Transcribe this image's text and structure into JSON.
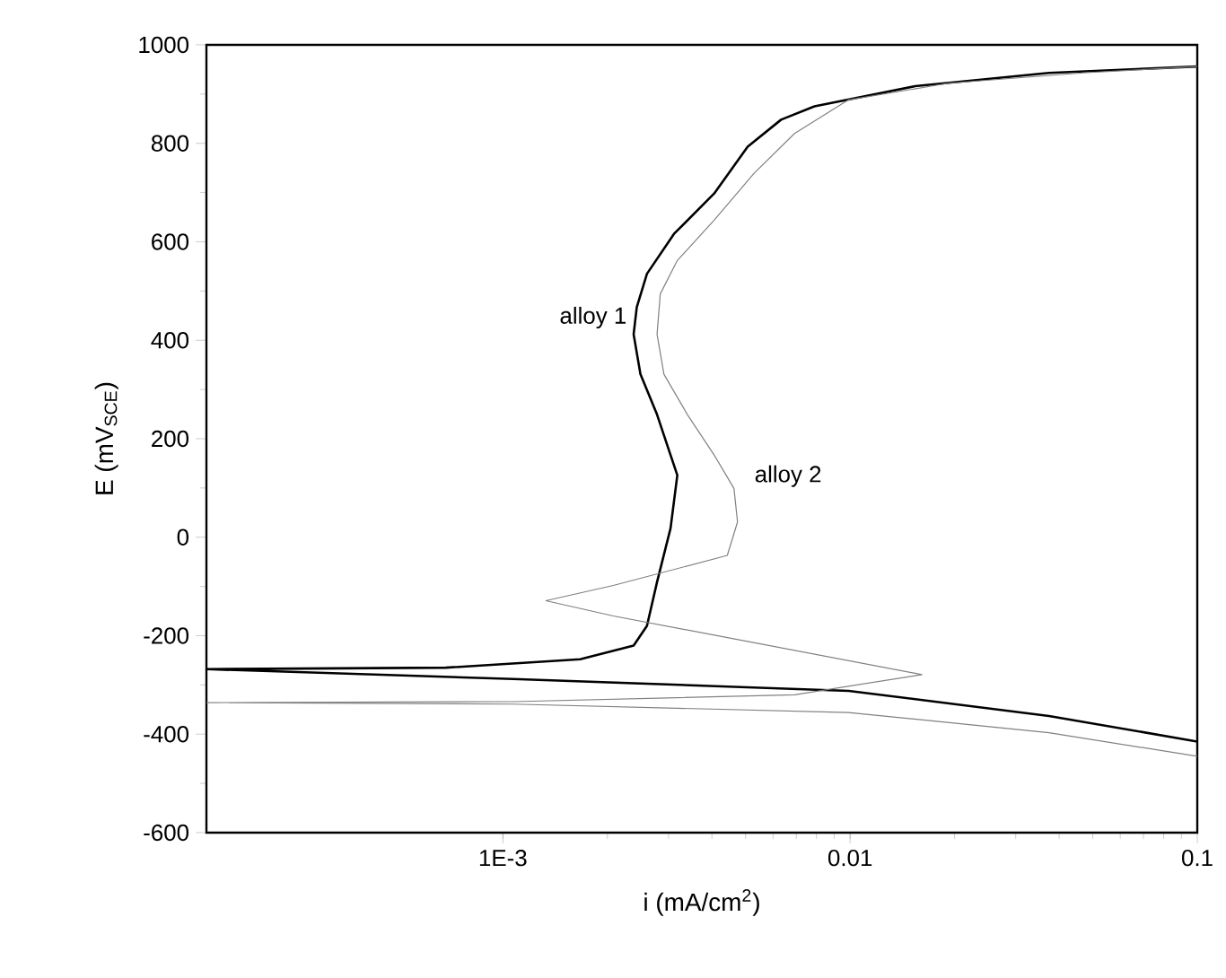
{
  "chart_data": {
    "type": "line",
    "xlabel": "i (mA/cm$^{2}$)",
    "ylabel": "E (mV$_{SCE}$)",
    "log": "x",
    "xlim": [
      0.00014,
      0.1
    ],
    "ylim": [
      -600,
      1000
    ],
    "xticks": [
      {
        "value": 0.001,
        "label": "1E-3"
      },
      0.01,
      0.1
    ],
    "yticks": [
      -600,
      -400,
      -200,
      0,
      200,
      400,
      600,
      800,
      1000
    ],
    "series": [
      {
        "name": "alloy 1",
        "color": "#000000",
        "x": [
          0.1,
          0.0374,
          0.0099,
          0.00107,
          0.00014,
          0.000685,
          0.00167,
          0.00238,
          0.0026,
          0.00278,
          0.00304,
          0.00318,
          0.00304,
          0.00278,
          0.00249,
          0.00238,
          0.00243,
          0.0026,
          0.00311,
          0.00406,
          0.00507,
          0.00633,
          0.0079,
          0.0154,
          0.0374,
          0.1
        ],
        "values": [
          -415,
          -363,
          -312,
          -288,
          -268,
          -265,
          -248,
          -220,
          -180,
          -91,
          18,
          126,
          167,
          249,
          331,
          412,
          467,
          535,
          616,
          698,
          793,
          848,
          875,
          916,
          943,
          956
        ]
      },
      {
        "name": "alloy 2",
        "color": "#808080",
        "x": [
          0.1,
          0.0374,
          0.0099,
          0.00107,
          0.00014,
          0.00107,
          0.00692,
          0.0161,
          0.00208,
          0.00133,
          0.00208,
          0.00443,
          0.00474,
          0.00463,
          0.00406,
          0.0034,
          0.00291,
          0.00278,
          0.00284,
          0.00318,
          0.00406,
          0.00529,
          0.00692,
          0.00987,
          0.0192,
          0.0468,
          0.1
        ],
        "values": [
          -445,
          -397,
          -356,
          -339,
          -336,
          -334,
          -320,
          -279,
          -160,
          -129,
          -98,
          -37,
          31,
          99,
          167,
          249,
          331,
          412,
          494,
          562,
          644,
          739,
          820,
          888,
          922,
          943,
          956
        ]
      }
    ]
  }
}
